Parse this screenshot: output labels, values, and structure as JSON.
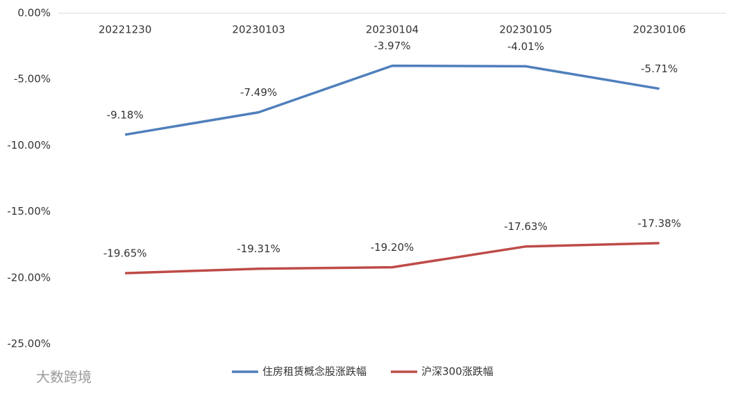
{
  "chart_data": {
    "type": "line",
    "categories": [
      "20221230",
      "20230103",
      "20230104",
      "20230105",
      "20230106"
    ],
    "series": [
      {
        "name": "住房租赁概念股涨跌幅",
        "color": "#4f7fbc",
        "values": [
          -9.18,
          -7.49,
          -3.97,
          -4.01,
          -5.71
        ],
        "value_labels": [
          "-9.18%",
          "-7.49%",
          "-3.97%",
          "-4.01%",
          "-5.71%"
        ]
      },
      {
        "name": "沪深300涨跌幅",
        "color": "#be4b48",
        "values": [
          -19.65,
          -19.31,
          -19.2,
          -17.63,
          -17.38
        ],
        "value_labels": [
          "-19.65%",
          "-19.31%",
          "-19.20%",
          "-17.63%",
          "-17.38%"
        ]
      }
    ],
    "ylim": [
      -25,
      0
    ],
    "yticks": [
      {
        "value": 0,
        "label": "0.00%"
      },
      {
        "value": -5,
        "label": "-5.00%"
      },
      {
        "value": -10,
        "label": "-10.00%"
      },
      {
        "value": -15,
        "label": "-15.00%"
      },
      {
        "value": -20,
        "label": "-20.00%"
      },
      {
        "value": -25,
        "label": "-25.00%"
      }
    ],
    "grid": false,
    "legend": "bottom",
    "watermark": "大数跨境"
  }
}
